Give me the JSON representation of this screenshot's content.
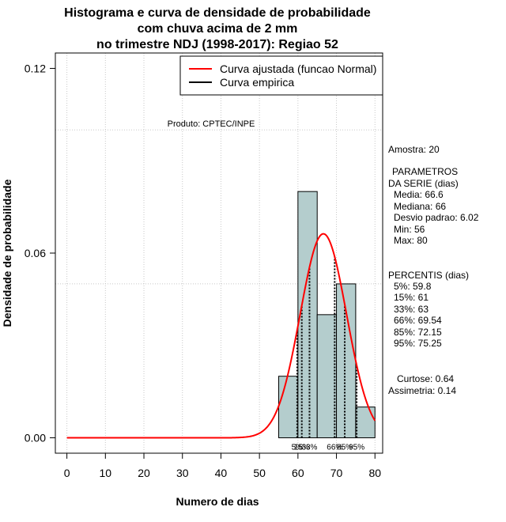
{
  "chart_data": {
    "type": "bar",
    "title_lines": [
      "Histograma e curva de densidade de probabilidade",
      "com chuva acima de 2 mm",
      "no trimestre NDJ (1998-2017): Regiao 52"
    ],
    "xlabel": "Numero de dias",
    "ylabel": "Densidade de probabilidade",
    "xlim": [
      -3,
      82
    ],
    "ylim": [
      -0.005,
      0.125
    ],
    "x_ticks": [
      0,
      10,
      20,
      30,
      40,
      50,
      60,
      70,
      80
    ],
    "x_tick_labels": [
      "0",
      "10",
      "20",
      "30",
      "40",
      "50",
      "60",
      "70",
      "80"
    ],
    "y_ticks": [
      0,
      0.06,
      0.12
    ],
    "y_tick_labels": [
      "0.00",
      "0.06",
      "0.12"
    ],
    "grid": true,
    "grid_x": [
      0,
      10,
      20,
      30,
      40,
      50,
      60,
      70,
      80
    ],
    "grid_y": [
      0.1,
      0.05
    ],
    "bins": [
      {
        "x0": 55,
        "x1": 60,
        "density": 0.02
      },
      {
        "x0": 60,
        "x1": 65,
        "density": 0.08
      },
      {
        "x0": 65,
        "x1": 70,
        "density": 0.04
      },
      {
        "x0": 70,
        "x1": 75,
        "density": 0.05
      },
      {
        "x0": 75,
        "x1": 80,
        "density": 0.01
      }
    ],
    "bar_color": "#b4cdcd",
    "curve": {
      "name": "Curva ajustada (funcao Normal)",
      "mean": 66.6,
      "sd": 6.02,
      "x_range": [
        0,
        80
      ],
      "color": "#ff0000"
    },
    "empirical_name": "Curva empirica",
    "percentiles": [
      {
        "label": "5%",
        "value": 59.8
      },
      {
        "label": "15%",
        "value": 61
      },
      {
        "label": "33%",
        "value": 63
      },
      {
        "label": "66%",
        "value": 69.54
      },
      {
        "label": "85%",
        "value": 72.15
      },
      {
        "label": "95%",
        "value": 75.25
      }
    ],
    "legend_position": "top-right",
    "credit": "Produto: CPTEC/INPE"
  },
  "side_panel": {
    "amostra": "Amostra: 20",
    "parametros_title_1": "PARAMETROS",
    "parametros_title_2": "DA SERIE (dias)",
    "media": "Media: 66.6",
    "mediana": "Mediana: 66",
    "desvio": "Desvio padrao: 6.02",
    "min": "Min: 56",
    "max": "Max: 80",
    "percentis_title": "PERCENTIS (dias)",
    "p5": "5%: 59.8",
    "p15": "15%: 61",
    "p33": "33%: 63",
    "p66": "66%: 69.54",
    "p85": "85%: 72.15",
    "p95": "95%: 75.25",
    "curtose": "Curtose: 0.64",
    "assimetria": "Assimetria: 0.14"
  }
}
